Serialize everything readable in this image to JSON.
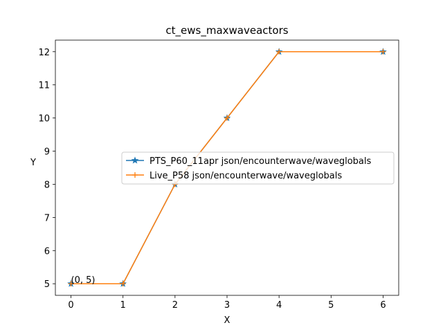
{
  "chart_data": {
    "type": "line",
    "title": "ct_ews_maxwaveactors",
    "xlabel": "X",
    "ylabel": "Y",
    "xlim": [
      -0.3,
      6.3
    ],
    "ylim": [
      4.65,
      12.35
    ],
    "xticks": [
      0,
      1,
      2,
      3,
      4,
      5,
      6
    ],
    "yticks": [
      5,
      6,
      7,
      8,
      9,
      10,
      11,
      12
    ],
    "grid": false,
    "legend_position": "center-right",
    "series": [
      {
        "name": "PTS_P60_11apr json/encounterwave/waveglobals",
        "color": "#1f77b4",
        "marker": "star",
        "x": [
          0,
          1,
          2,
          3,
          4,
          6
        ],
        "values": [
          5,
          5,
          8,
          10,
          12,
          12
        ]
      },
      {
        "name": "Live_P58 json/encounterwave/waveglobals",
        "color": "#ff7f0e",
        "marker": "plus",
        "x": [
          0,
          1,
          2,
          3,
          4,
          6
        ],
        "values": [
          5,
          5,
          8,
          10,
          12,
          12
        ]
      }
    ],
    "annotations": [
      {
        "text": "(0, 5)",
        "x": 0,
        "y": 5
      }
    ]
  }
}
